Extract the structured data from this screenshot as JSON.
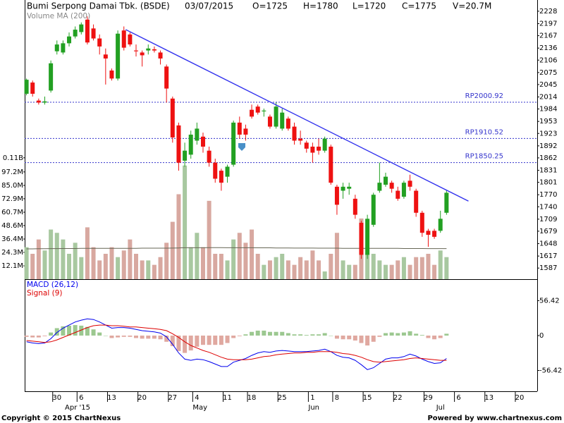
{
  "chart_data": [
    {
      "type": "candlestick",
      "title": "Bumi Serpong Damai Tbk. (BSDE)",
      "date": "03/07/2015",
      "quote": [
        "O=1725",
        "H=1780",
        "L=1720",
        "C=1775",
        "V=20.7M"
      ],
      "up_color": "#22a022",
      "down_color": "#ee1111",
      "open": [
        2022,
        2050,
        2005,
        2000,
        2030,
        2128,
        2125,
        2148,
        2165,
        2176,
        2207,
        2185,
        2160,
        2120,
        2080,
        2060,
        2180,
        2170,
        2130,
        2125,
        2130,
        2133,
        2125,
        2090,
        2010,
        1943,
        1855,
        1870,
        1905,
        1915,
        1880,
        1850,
        1830,
        1815,
        1845,
        1950,
        1935,
        1982,
        1990,
        1978,
        1965,
        1940,
        1935,
        1960,
        1940,
        1910,
        1900,
        1890,
        1890,
        1880,
        1890,
        1790,
        1780,
        1785,
        1760,
        1700,
        1620,
        1695,
        1780,
        1795,
        1800,
        1780,
        1765,
        1805,
        1780,
        1725,
        1680,
        1680,
        1680,
        1725
      ],
      "high": [
        2060,
        2055,
        2010,
        2015,
        2105,
        2155,
        2155,
        2175,
        2190,
        2200,
        2215,
        2195,
        2170,
        2135,
        2085,
        2180,
        2190,
        2175,
        2145,
        2130,
        2145,
        2140,
        2130,
        2095,
        2015,
        1950,
        1900,
        1930,
        1950,
        1925,
        1890,
        1860,
        1835,
        1845,
        1955,
        1965,
        1945,
        1995,
        1995,
        1985,
        1970,
        2000,
        1985,
        1965,
        1950,
        1930,
        1905,
        1900,
        1910,
        1915,
        1895,
        1795,
        1800,
        1800,
        1770,
        1705,
        1720,
        1775,
        1850,
        1825,
        1805,
        1790,
        1805,
        1820,
        1785,
        1730,
        1685,
        1685,
        1730,
        1780
      ],
      "low": [
        2018,
        2015,
        1995,
        1995,
        2025,
        2120,
        2120,
        2140,
        2160,
        2170,
        2145,
        2155,
        2120,
        2045,
        2055,
        2055,
        2130,
        2140,
        2115,
        2090,
        2120,
        2125,
        2095,
        2000,
        1900,
        1830,
        1840,
        1860,
        1895,
        1875,
        1840,
        1800,
        1780,
        1800,
        1840,
        1910,
        1905,
        1960,
        1970,
        1965,
        1935,
        1935,
        1930,
        1930,
        1895,
        1895,
        1875,
        1850,
        1870,
        1875,
        1795,
        1720,
        1760,
        1770,
        1710,
        1610,
        1610,
        1690,
        1775,
        1790,
        1775,
        1755,
        1760,
        1780,
        1715,
        1665,
        1640,
        1660,
        1675,
        1720
      ],
      "close": [
        2057,
        2022,
        2000,
        2003,
        2098,
        2145,
        2148,
        2165,
        2182,
        2195,
        2150,
        2160,
        2140,
        2110,
        2060,
        2172,
        2137,
        2145,
        2128,
        2118,
        2135,
        2130,
        2110,
        2035,
        1913,
        1850,
        1880,
        1920,
        1935,
        1890,
        1850,
        1810,
        1800,
        1840,
        1950,
        1920,
        1920,
        1965,
        1975,
        1980,
        1940,
        1990,
        1975,
        1935,
        1905,
        1905,
        1885,
        1875,
        1880,
        1910,
        1800,
        1745,
        1790,
        1790,
        1720,
        1620,
        1710,
        1770,
        1800,
        1815,
        1785,
        1760,
        1800,
        1790,
        1725,
        1675,
        1670,
        1665,
        1710,
        1775
      ],
      "ylim": [
        1561,
        2256
      ],
      "yticks": [
        2228,
        2197,
        2167,
        2136,
        2106,
        2075,
        2045,
        2014,
        1984,
        1953,
        1923,
        1892,
        1862,
        1831,
        1801,
        1770,
        1740,
        1709,
        1679,
        1648,
        1617,
        1587
      ],
      "levels": [
        {
          "value": 2000.92,
          "label": "RP2000.92"
        },
        {
          "value": 1910.52,
          "label": "RP1910.52"
        },
        {
          "value": 1850.25,
          "label": "RP1850.25"
        }
      ],
      "level_color": "#3333cc",
      "trendline": {
        "x": [
          16.3,
          72.6
        ],
        "y": [
          2182,
          1754
        ],
        "color": "#3333ee"
      }
    },
    {
      "type": "bar",
      "title": "Volume MA (200)",
      "up_color": "#a8c8a0",
      "down_color": "#d8a8a0",
      "ma_color": "#666655",
      "values": [
        29,
        23,
        36,
        26,
        45,
        42,
        36,
        23,
        33,
        20,
        47,
        29,
        17,
        23,
        29,
        20,
        26,
        36,
        23,
        17,
        17,
        13,
        20,
        33,
        52,
        77,
        103,
        29,
        42,
        29,
        71,
        23,
        23,
        17,
        36,
        42,
        33,
        45,
        23,
        13,
        17,
        20,
        23,
        17,
        13,
        20,
        17,
        26,
        17,
        7,
        23,
        42,
        17,
        13,
        13,
        55,
        23,
        23,
        17,
        13,
        13,
        17,
        20,
        13,
        20,
        20,
        23,
        13,
        26,
        20
      ],
      "ma_values": [
        27.5,
        27.5,
        27.6,
        27.6,
        27.7,
        27.7,
        27.8,
        27.8,
        27.8,
        27.9,
        27.9,
        27.9,
        28,
        28,
        28,
        28,
        28,
        28,
        28,
        28.1,
        28.1,
        28.1,
        28.1,
        28.1,
        28.2,
        28.3,
        28.5,
        28.5,
        28.5,
        28.5,
        28.6,
        28.6,
        28.6,
        28.5,
        28.5,
        28.5,
        28.5,
        28.5,
        28.4,
        28.4,
        28.4,
        28.3,
        28.3,
        28.3,
        28.2,
        28.2,
        28.2,
        28.2,
        28.1,
        28.1,
        28.1,
        28.1,
        28,
        28,
        28,
        28,
        28,
        28,
        27.9,
        27.9,
        27.9,
        27.9,
        27.8,
        27.8,
        27.8,
        27.8,
        27.7,
        27.7,
        27.7,
        27.7
      ],
      "ylim": [
        0,
        253
      ],
      "yticks": [
        {
          "value": 110,
          "label": "0.11B"
        },
        {
          "value": 97.2,
          "label": "97.2M"
        },
        {
          "value": 85.0,
          "label": "85.0M"
        },
        {
          "value": 72.9,
          "label": "72.9M"
        },
        {
          "value": 60.7,
          "label": "60.7M"
        },
        {
          "value": 48.6,
          "label": "48.6M"
        },
        {
          "value": 36.4,
          "label": "36.4M"
        },
        {
          "value": 24.3,
          "label": "24.3M"
        },
        {
          "value": 12.1,
          "label": "12.1M"
        }
      ]
    },
    {
      "type": "macd",
      "series": [
        {
          "name": "MACD (26,12)",
          "color": "#0000ee",
          "values": [
            -10,
            -12,
            -13,
            -12,
            -5,
            5,
            12,
            17,
            22,
            25,
            27,
            26,
            22,
            17,
            12,
            13,
            13,
            12,
            10,
            8,
            7,
            6,
            4,
            -2,
            -14,
            -28,
            -38,
            -40,
            -38,
            -39,
            -42,
            -46,
            -50,
            -50,
            -43,
            -40,
            -37,
            -32,
            -28,
            -26,
            -27,
            -25,
            -24,
            -25,
            -26,
            -26,
            -26,
            -25,
            -24,
            -22,
            -26,
            -32,
            -35,
            -36,
            -40,
            -47,
            -55,
            -52,
            -45,
            -38,
            -36,
            -36,
            -34,
            -30,
            -33,
            -38,
            -42,
            -45,
            -44,
            -37
          ]
        },
        {
          "name": "Signal (9)",
          "color": "#dd0000",
          "values": [
            -8,
            -9,
            -10,
            -11,
            -10,
            -7,
            -3,
            1,
            5,
            9,
            13,
            16,
            17,
            17,
            16,
            16,
            15,
            14,
            14,
            13,
            12,
            11,
            10,
            8,
            3,
            -3,
            -10,
            -16,
            -20,
            -24,
            -27,
            -31,
            -35,
            -38,
            -39,
            -39,
            -39,
            -38,
            -36,
            -34,
            -33,
            -31,
            -30,
            -29,
            -28,
            -28,
            -27,
            -27,
            -26,
            -26,
            -26,
            -27,
            -29,
            -30,
            -32,
            -35,
            -39,
            -42,
            -43,
            -42,
            -41,
            -40,
            -39,
            -37,
            -36,
            -37,
            -38,
            -39,
            -40,
            -40
          ]
        }
      ],
      "histogram": [
        -2,
        -3,
        -3,
        -1,
        5,
        12,
        15,
        16,
        17,
        16,
        14,
        10,
        5,
        0,
        -4,
        -3,
        -2,
        -2,
        -4,
        -5,
        -5,
        -5,
        -6,
        -10,
        -17,
        -25,
        -28,
        -24,
        -18,
        -15,
        -15,
        -15,
        -15,
        -12,
        -4,
        -1,
        2,
        6,
        8,
        8,
        6,
        6,
        6,
        4,
        2,
        2,
        1,
        2,
        2,
        4,
        0,
        -5,
        -6,
        -6,
        -8,
        -12,
        -16,
        -10,
        -2,
        4,
        5,
        4,
        5,
        7,
        3,
        1,
        -4,
        -6,
        -4,
        3
      ],
      "up_color": "#9cc890",
      "down_color": "#e0a8a0",
      "ylim": [
        -90,
        90
      ],
      "yticks": [
        56.42,
        0,
        -56.42
      ],
      "xlim": [
        -0.3,
        83.9
      ],
      "xticks": [
        {
          "value": 5,
          "label": "30"
        },
        {
          "value": 9,
          "label": "6"
        },
        {
          "value": 14,
          "label": "13"
        },
        {
          "value": 19,
          "label": "20"
        },
        {
          "value": 24,
          "label": "27"
        },
        {
          "value": 28,
          "label": "4"
        },
        {
          "value": 33,
          "label": "11"
        },
        {
          "value": 37,
          "label": "18"
        },
        {
          "value": 42,
          "label": "25"
        },
        {
          "value": 47,
          "label": "1"
        },
        {
          "value": 51,
          "label": "8"
        },
        {
          "value": 56,
          "label": "15"
        },
        {
          "value": 61,
          "label": "22"
        },
        {
          "value": 66,
          "label": "29"
        },
        {
          "value": 71,
          "label": "6"
        },
        {
          "value": 76,
          "label": "13"
        },
        {
          "value": 81,
          "label": "20"
        }
      ],
      "months": [
        {
          "value": 7,
          "label": "Apr '15"
        },
        {
          "value": 28,
          "label": "May"
        },
        {
          "value": 47,
          "label": "Jun"
        },
        {
          "value": 68,
          "label": "Jul"
        }
      ]
    }
  ],
  "footer": {
    "copyright": "Copyright © 2015 ChartNexus",
    "powered": "Powered by www.chartnexus.com"
  }
}
